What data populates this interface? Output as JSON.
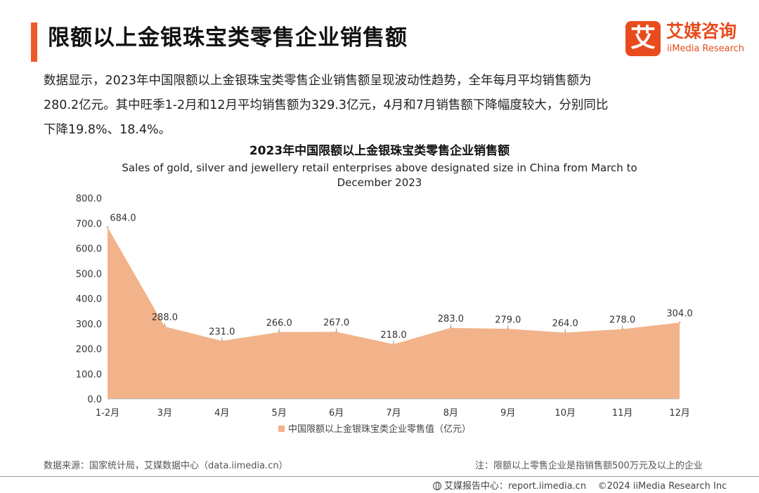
{
  "header": {
    "title": "限额以上金银珠宝类零售企业销售额",
    "logo_mark": "艾",
    "logo_cn": "艾媒咨询",
    "logo_en": "iiMedia Research"
  },
  "intro": {
    "line1": "数据显示，2023年中国限额以上金银珠宝类零售企业销售额呈现波动性趋势，全年每月平均销售额为",
    "line2": "280.2亿元。其中旺季1-2月和12月平均销售额为329.3亿元，4月和7月销售额下降幅度较大，分别同比",
    "line3": "下降19.8%、18.4%。"
  },
  "chart_data": {
    "type": "area",
    "title": "2023年中国限额以上金银珠宝类零售企业销售额",
    "subtitle_line1": "Sales of gold, silver and jewellery retail enterprises above designated size in China from March to",
    "subtitle_line2": "December 2023",
    "categories": [
      "1-2月",
      "3月",
      "4月",
      "5月",
      "6月",
      "7月",
      "8月",
      "9月",
      "10月",
      "11月",
      "12月"
    ],
    "series": [
      {
        "name": "中国限额以上金银珠宝类企业零售值（亿元）",
        "values": [
          684.0,
          288.0,
          231.0,
          266.0,
          267.0,
          218.0,
          283.0,
          279.0,
          264.0,
          278.0,
          304.0
        ],
        "color": "#f2b38a"
      }
    ],
    "ylim": [
      0,
      800
    ],
    "yticks": [
      0,
      100,
      200,
      300,
      400,
      500,
      600,
      700,
      800
    ],
    "legend_position": "bottom",
    "grid": false
  },
  "footer": {
    "source": "数据来源：国家统计局，艾媒数据中心（data.iimedia.cn）",
    "note": "注：限额以上零售企业是指销售额500万元及以上的企业",
    "report_site": "艾媒报告中心：report.iimedia.cn",
    "copyright": "©2024  iiMedia Research  Inc"
  }
}
